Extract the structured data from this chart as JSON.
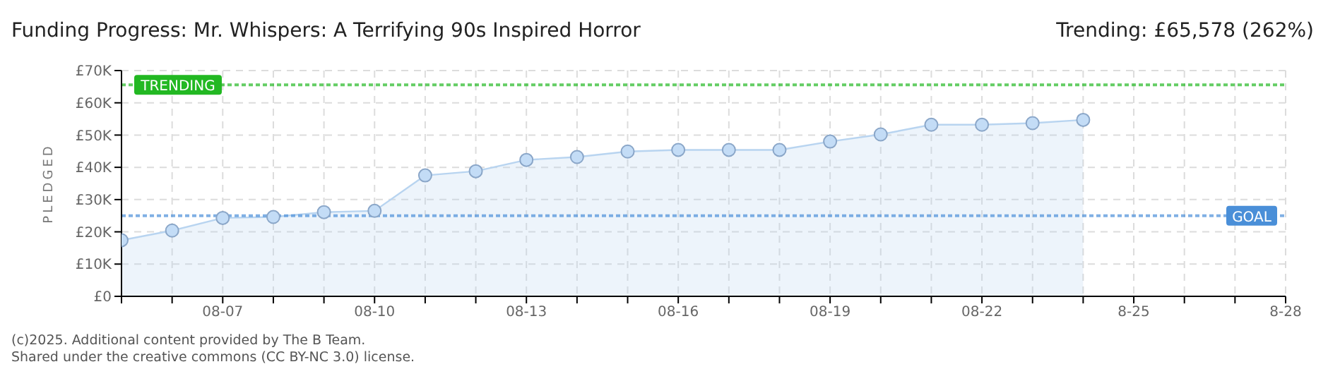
{
  "chart_data": {
    "type": "area",
    "title": "Funding Progress: Mr. Whispers: A Terrifying 90s Inspired Horror",
    "subtitle": "Trending: £65,578 (262%)",
    "ylabel": "PLEDGED",
    "x": [
      "--08-05",
      "--08-06",
      "--08-07",
      "--08-08",
      "--08-09",
      "--08-10",
      "--08-11",
      "--08-12",
      "--08-13",
      "--08-14",
      "--08-15",
      "--08-16",
      "--08-17",
      "--08-18",
      "--08-19",
      "--08-20",
      "--08-21",
      "--08-22",
      "--08-23",
      "--08-24"
    ],
    "series": [
      {
        "color": "#b8d4f0",
        "values": [
          17400,
          20400,
          24300,
          24600,
          26100,
          26500,
          37500,
          38800,
          42300,
          43200,
          44900,
          45400,
          45400,
          45400,
          48000,
          50200,
          53200,
          53200,
          53700,
          54700
        ]
      }
    ],
    "xlim": [
      "--08-05",
      "--08-28"
    ],
    "xticks": [
      {
        "value": "--08-05",
        "label": null
      },
      {
        "value": "--08-06",
        "label": null
      },
      {
        "value": "--08-07",
        "label": "08-07"
      },
      {
        "value": "--08-08",
        "label": null
      },
      {
        "value": "--08-09",
        "label": null
      },
      {
        "value": "--08-10",
        "label": "08-10"
      },
      {
        "value": "--08-11",
        "label": null
      },
      {
        "value": "--08-12",
        "label": null
      },
      {
        "value": "--08-13",
        "label": "08-13"
      },
      {
        "value": "--08-14",
        "label": null
      },
      {
        "value": "--08-15",
        "label": null
      },
      {
        "value": "--08-16",
        "label": "08-16"
      },
      {
        "value": "--08-17",
        "label": null
      },
      {
        "value": "--08-18",
        "label": null
      },
      {
        "value": "--08-19",
        "label": "08-19"
      },
      {
        "value": "--08-20",
        "label": null
      },
      {
        "value": "--08-21",
        "label": null
      },
      {
        "value": "--08-22",
        "label": "08-22"
      },
      {
        "value": "--08-23",
        "label": null
      },
      {
        "value": "--08-24",
        "label": null
      },
      {
        "value": "--08-25",
        "label": "8-25"
      },
      {
        "value": "--08-26",
        "label": null
      },
      {
        "value": "--08-27",
        "label": null
      },
      {
        "value": "--08-28",
        "label": "8-28"
      }
    ],
    "ylim": [
      0,
      70000
    ],
    "yticks": [
      {
        "value": 0,
        "label": "£0"
      },
      {
        "value": 10000,
        "label": "£10K"
      },
      {
        "value": 20000,
        "label": "£20K"
      },
      {
        "value": 30000,
        "label": "£30K"
      },
      {
        "value": 40000,
        "label": "£40K"
      },
      {
        "value": 50000,
        "label": "£50K"
      },
      {
        "value": 60000,
        "label": "£60K"
      },
      {
        "value": 70000,
        "label": "£70K"
      }
    ],
    "ref_lines": [
      {
        "axis": "y",
        "value": 25000,
        "label": "GOAL",
        "color": "#4a8fd8",
        "line_style": "dotted"
      },
      {
        "axis": "y",
        "value": 65578,
        "label": "TRENDING",
        "color": "#22b822",
        "line_style": "dotted"
      }
    ],
    "grid": true,
    "marker": "circle",
    "annotations": [
      "(c)2025. Additional content provided by The B Team.",
      "Shared under the creative commons (CC BY-NC 3.0) license."
    ]
  }
}
